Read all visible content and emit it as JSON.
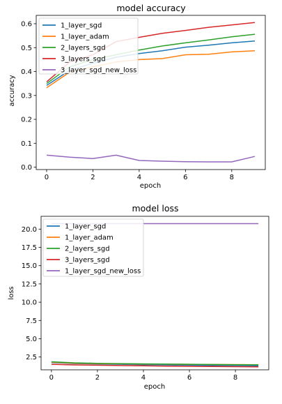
{
  "chart_data": [
    {
      "type": "line",
      "title": "model accuracy",
      "xlabel": "epoch",
      "ylabel": "accuracy",
      "xlim": [
        -0.45,
        9.45
      ],
      "ylim": [
        -0.01,
        0.635
      ],
      "xticks": [
        0,
        2,
        4,
        6,
        8
      ],
      "xtick_labels": [
        "0",
        "2",
        "4",
        "6",
        "8"
      ],
      "yticks": [
        0.0,
        0.1,
        0.2,
        0.3,
        0.4,
        0.5,
        0.6
      ],
      "ytick_labels": [
        "0.0",
        "0.1",
        "0.2",
        "0.3",
        "0.4",
        "0.5",
        "0.6"
      ],
      "legend_position": "top-left",
      "x": [
        0,
        1,
        2,
        3,
        4,
        5,
        6,
        7,
        8,
        9
      ],
      "series": [
        {
          "name": "1_layer_sgd",
          "color": "#1f77b4",
          "values": [
            0.342,
            0.405,
            0.435,
            0.46,
            0.475,
            0.487,
            0.502,
            0.51,
            0.52,
            0.528
          ]
        },
        {
          "name": "1_layer_adam",
          "color": "#ff7f0e",
          "values": [
            0.332,
            0.398,
            0.42,
            0.44,
            0.45,
            0.454,
            0.47,
            0.472,
            0.482,
            0.487
          ]
        },
        {
          "name": "2_layers_sgd",
          "color": "#2ca02c",
          "values": [
            0.35,
            0.42,
            0.45,
            0.47,
            0.49,
            0.507,
            0.52,
            0.532,
            0.545,
            0.556
          ]
        },
        {
          "name": "3_layers_sgd",
          "color": "#d62728",
          "values": [
            0.357,
            0.44,
            0.47,
            0.525,
            0.543,
            0.56,
            0.572,
            0.585,
            0.595,
            0.605
          ]
        },
        {
          "name": "3_layer_sgd_new_loss",
          "color": "#9467bd",
          "values": [
            0.05,
            0.042,
            0.036,
            0.05,
            0.028,
            0.025,
            0.023,
            0.022,
            0.022,
            0.045
          ]
        }
      ]
    },
    {
      "type": "line",
      "title": "model loss",
      "xlabel": "epoch",
      "ylabel": "loss",
      "xlim": [
        -0.45,
        9.45
      ],
      "ylim": [
        0.75,
        21.75
      ],
      "xticks": [
        0,
        2,
        4,
        6,
        8
      ],
      "xtick_labels": [
        "0",
        "2",
        "4",
        "6",
        "8"
      ],
      "yticks": [
        2.5,
        5.0,
        7.5,
        10.0,
        12.5,
        15.0,
        17.5,
        20.0
      ],
      "ytick_labels": [
        "2.5",
        "5.0",
        "7.5",
        "10.0",
        "12.5",
        "15.0",
        "17.5",
        "20.0"
      ],
      "legend_position": "top-left",
      "x": [
        0,
        1,
        2,
        3,
        4,
        5,
        6,
        7,
        8,
        9
      ],
      "series": [
        {
          "name": "1_layer_sgd",
          "color": "#1f77b4",
          "values": [
            1.75,
            1.6,
            1.55,
            1.5,
            1.45,
            1.42,
            1.38,
            1.35,
            1.33,
            1.3
          ]
        },
        {
          "name": "1_layer_adam",
          "color": "#ff7f0e",
          "values": [
            1.8,
            1.65,
            1.6,
            1.57,
            1.54,
            1.52,
            1.5,
            1.48,
            1.47,
            1.45
          ]
        },
        {
          "name": "2_layers_sgd",
          "color": "#2ca02c",
          "values": [
            1.85,
            1.7,
            1.64,
            1.6,
            1.56,
            1.53,
            1.5,
            1.48,
            1.45,
            1.43
          ]
        },
        {
          "name": "3_layers_sgd",
          "color": "#d62728",
          "values": [
            1.5,
            1.42,
            1.38,
            1.33,
            1.3,
            1.26,
            1.23,
            1.2,
            1.18,
            1.15
          ]
        },
        {
          "name": "1_layer_sgd_new_loss",
          "color": "#9467bd",
          "values": [
            20.75,
            20.75,
            20.75,
            20.75,
            20.75,
            20.75,
            20.75,
            20.75,
            20.75,
            20.75
          ]
        }
      ]
    }
  ]
}
